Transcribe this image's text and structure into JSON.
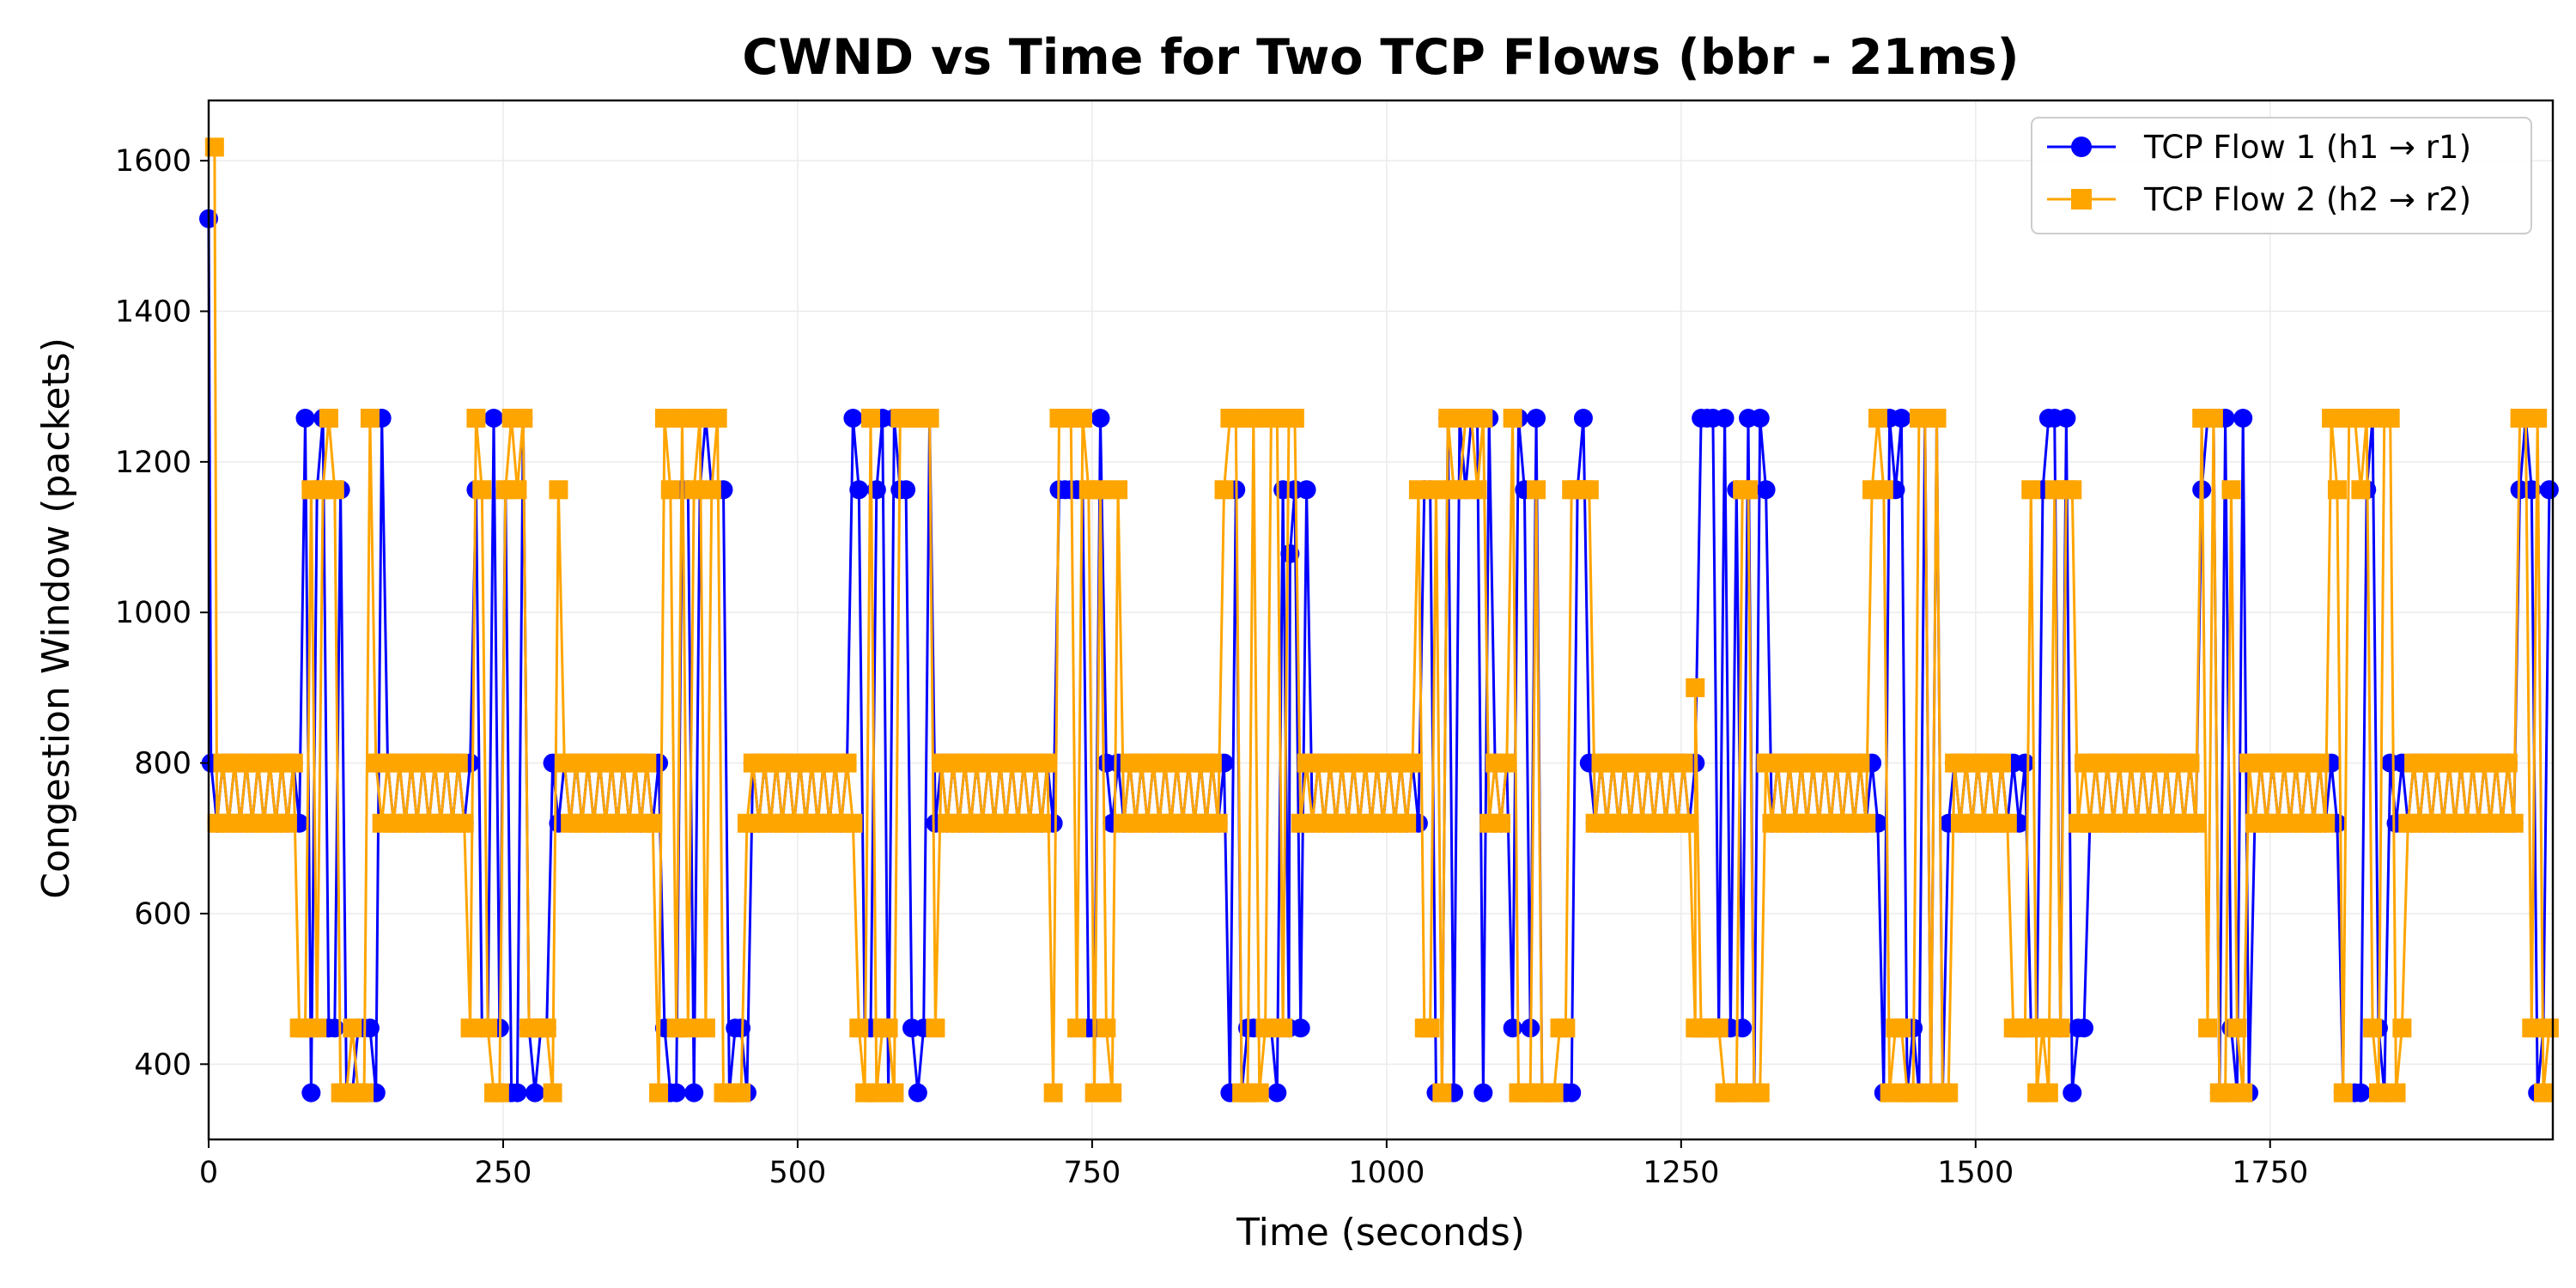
{
  "chart_data": {
    "type": "line",
    "title": "CWND vs Time for Two TCP Flows (bbr - 21ms)",
    "xlabel": "Time (seconds)",
    "ylabel": "Congestion Window (packets)",
    "xlim": [
      0,
      1990
    ],
    "ylim": [
      300,
      1680
    ],
    "x_ticks": [
      0,
      250,
      500,
      750,
      1000,
      1250,
      1500,
      1750
    ],
    "y_ticks": [
      400,
      600,
      800,
      1000,
      1200,
      1400,
      1600
    ],
    "grid": true,
    "legend": "top-right",
    "steady_state": {
      "levels": [
        800,
        720
      ],
      "oscillation_period_s": 10
    },
    "probe_rtt_levels": [
      1258,
      1163,
      448,
      362
    ],
    "series": [
      {
        "name": "TCP Flow 1 (h1 → r1)",
        "color": "#0000ff",
        "marker": "circle",
        "initial_points": [
          [
            0,
            1523
          ]
        ],
        "probe_windows": [
          [
            80,
            150
          ],
          [
            225,
            290
          ],
          [
            385,
            460
          ],
          [
            545,
            615
          ],
          [
            720,
            760
          ],
          [
            865,
            932
          ],
          [
            1030,
            1090
          ],
          [
            1105,
            1170
          ],
          [
            1265,
            1325
          ],
          [
            1420,
            1475
          ],
          [
            1545,
            1595
          ],
          [
            1690,
            1735
          ],
          [
            1810,
            1850
          ],
          [
            1960,
            1990
          ]
        ],
        "annotations": [
          [
            918,
            1078
          ]
        ]
      },
      {
        "name": "TCP Flow 2 (h2 → r2)",
        "color": "#ffa500",
        "marker": "square",
        "initial_points": [
          [
            5,
            1618
          ]
        ],
        "probe_windows": [
          [
            75,
            140
          ],
          [
            220,
            298
          ],
          [
            380,
            455
          ],
          [
            548,
            620
          ],
          [
            715,
            772
          ],
          [
            858,
            925
          ],
          [
            1025,
            1085
          ],
          [
            1105,
            1175
          ],
          [
            1260,
            1318
          ],
          [
            1410,
            1480
          ],
          [
            1530,
            1585
          ],
          [
            1690,
            1730
          ],
          [
            1800,
            1865
          ],
          [
            1960,
            1990
          ]
        ],
        "annotations": [
          [
            1262,
            900
          ]
        ]
      }
    ]
  }
}
